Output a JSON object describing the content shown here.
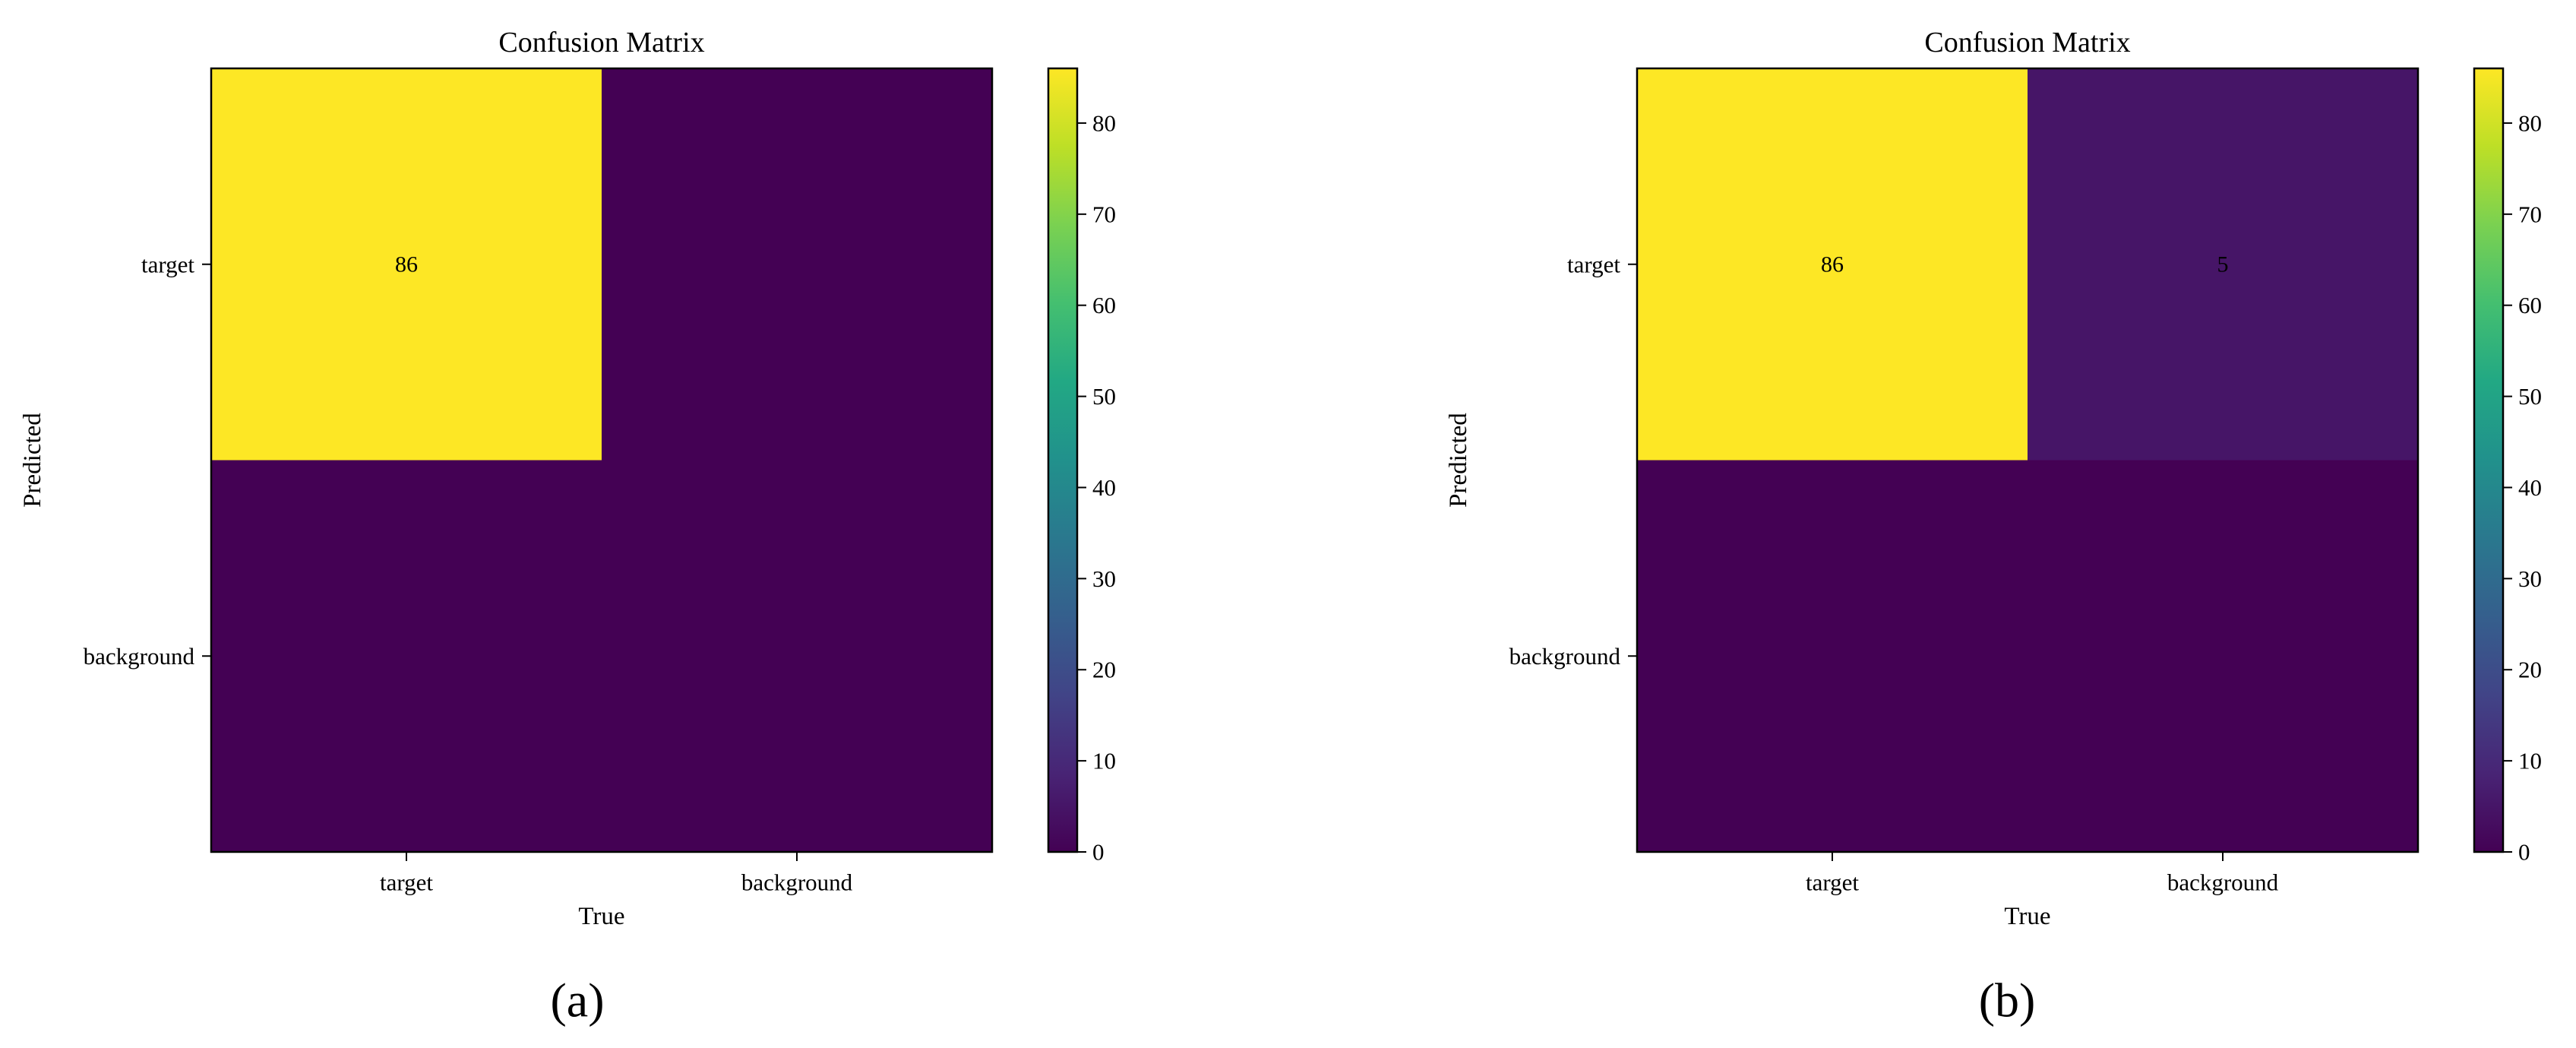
{
  "chart_data": [
    {
      "panel_label": "(a)",
      "type": "heatmap",
      "title": "Confusion Matrix",
      "xlabel": "True",
      "ylabel": "Predicted",
      "x_categories": [
        "target",
        "background"
      ],
      "y_categories": [
        "target",
        "background"
      ],
      "values": [
        [
          86,
          0
        ],
        [
          0,
          0
        ]
      ],
      "cell_labels": [
        [
          "86",
          ""
        ],
        [
          "",
          ""
        ]
      ],
      "colormap": "viridis",
      "colorbar": {
        "min": 0,
        "max": 86,
        "ticks": [
          "0",
          "10",
          "20",
          "30",
          "40",
          "50",
          "60",
          "70",
          "80"
        ]
      }
    },
    {
      "panel_label": "(b)",
      "type": "heatmap",
      "title": "Confusion Matrix",
      "xlabel": "True",
      "ylabel": "Predicted",
      "x_categories": [
        "target",
        "background"
      ],
      "y_categories": [
        "target",
        "background"
      ],
      "values": [
        [
          86,
          5
        ],
        [
          0,
          0
        ]
      ],
      "cell_labels": [
        [
          "86",
          "5"
        ],
        [
          "",
          ""
        ]
      ],
      "colormap": "viridis",
      "colorbar": {
        "min": 0,
        "max": 86,
        "ticks": [
          "0",
          "10",
          "20",
          "30",
          "40",
          "50",
          "60",
          "70",
          "80"
        ]
      }
    }
  ]
}
